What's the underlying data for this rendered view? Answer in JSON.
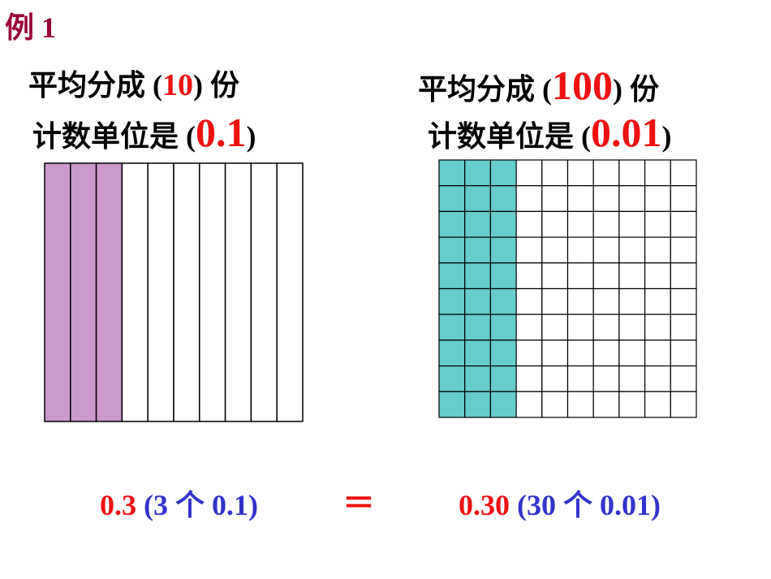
{
  "title": "例 1",
  "left": {
    "line1": {
      "before": "平均分成 (",
      "value": "10",
      "after": ") 份"
    },
    "line2": {
      "before": "计数单位是 (",
      "value": "0.1",
      "after": ")"
    }
  },
  "right": {
    "line1": {
      "before": "平均分成 (",
      "value": "100",
      "after": ") 份"
    },
    "line2": {
      "before": "计数单位是 (",
      "value": "0.01",
      "after": ")"
    }
  },
  "equation": {
    "left_value": "0.3",
    "left_note": "(3 个 0.1)",
    "sign": "＝",
    "right_value": "0.30",
    "right_note": "(30 个 0.01)"
  }
}
